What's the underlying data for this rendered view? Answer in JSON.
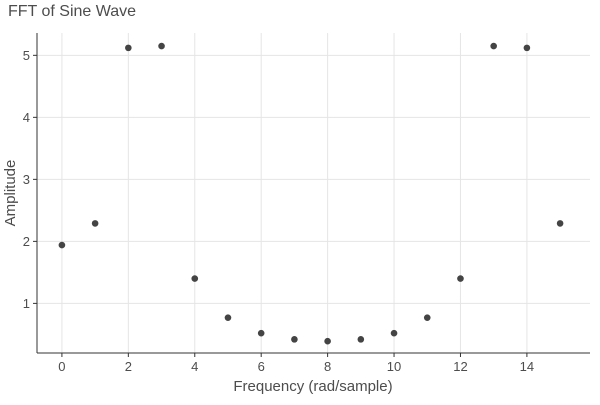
{
  "chart_data": {
    "type": "scatter",
    "title": "FFT of Sine Wave",
    "xlabel": "Frequency (rad/sample)",
    "ylabel": "Amplitude",
    "x": [
      0,
      1,
      2,
      3,
      4,
      5,
      6,
      7,
      8,
      9,
      10,
      11,
      12,
      13,
      14,
      15
    ],
    "y": [
      1.94,
      2.29,
      5.12,
      5.15,
      1.4,
      0.77,
      0.52,
      0.42,
      0.39,
      0.42,
      0.52,
      0.77,
      1.4,
      5.15,
      5.12,
      2.29
    ],
    "xlim": [
      -0.75,
      15.9
    ],
    "ylim": [
      0.2,
      5.36
    ],
    "xticks": [
      0,
      2,
      4,
      6,
      8,
      10,
      12,
      14
    ],
    "yticks": [
      1,
      2,
      3,
      4,
      5
    ],
    "grid": true,
    "point_color": "#444444",
    "grid_color": "#e5e5e5",
    "axis_color": "#333333",
    "text_color": "#4d4d4d"
  }
}
